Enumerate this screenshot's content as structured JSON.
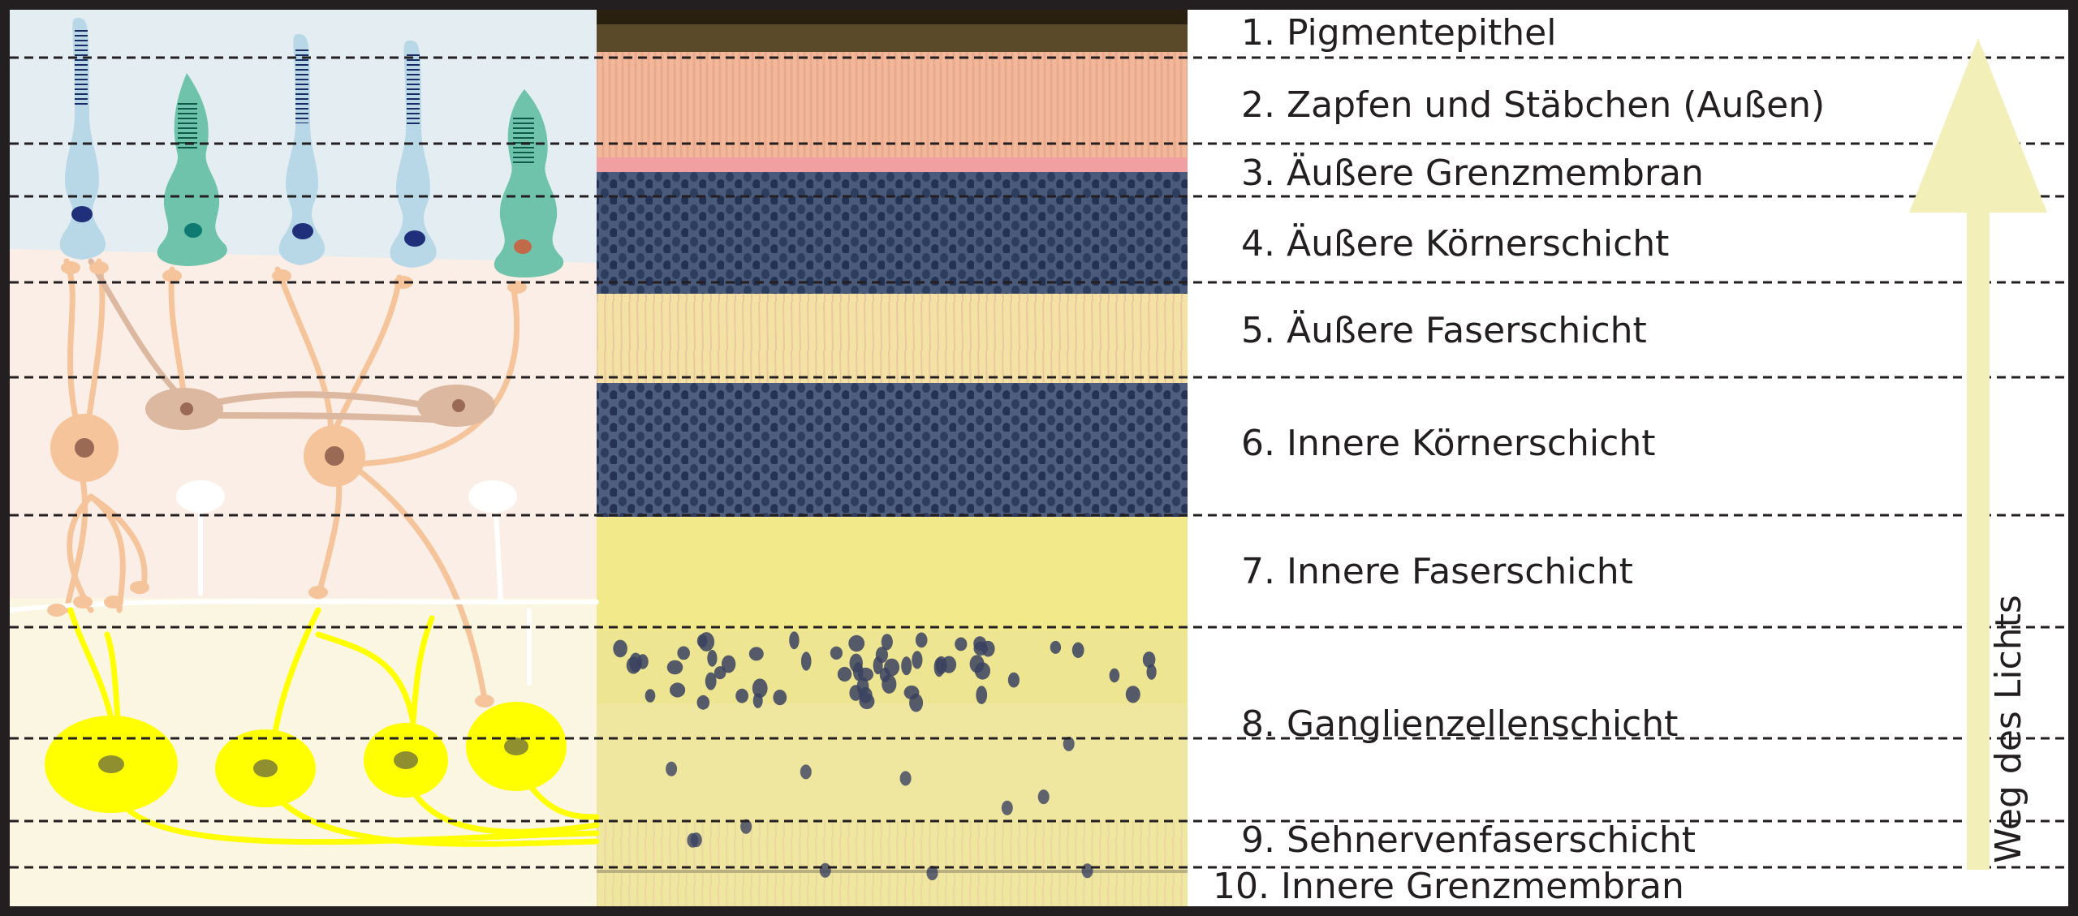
{
  "layers": [
    {
      "label": "1. Pigmentepithel"
    },
    {
      "label": "2. Zapfen und Stäbchen (Außen)"
    },
    {
      "label": "3. Äußere Grenzmembran"
    },
    {
      "label": "4. Äußere Körnerschicht"
    },
    {
      "label": "5. Äußere Faserschicht"
    },
    {
      "label": "6. Innere Körnerschicht"
    },
    {
      "label": "7. Innere Faserschicht"
    },
    {
      "label": "8. Ganglienzellenschicht"
    },
    {
      "label": "9. Sehnervenfaserschicht"
    },
    {
      "label": "10. Innere Grenzmembran"
    }
  ],
  "light_path": {
    "label": "Weg des Lichts",
    "arrow_icon": "up-arrow-icon",
    "color": "#f2f0b8"
  },
  "colors": {
    "rod": "#b8d8e8",
    "cone": "#6fc3ab",
    "bipolar": "#f5c49b",
    "horizontal": "#dcb8a0",
    "ganglion": "#ffff00",
    "nucleus_dark": "#1f2f7a",
    "border": "#231f20"
  }
}
